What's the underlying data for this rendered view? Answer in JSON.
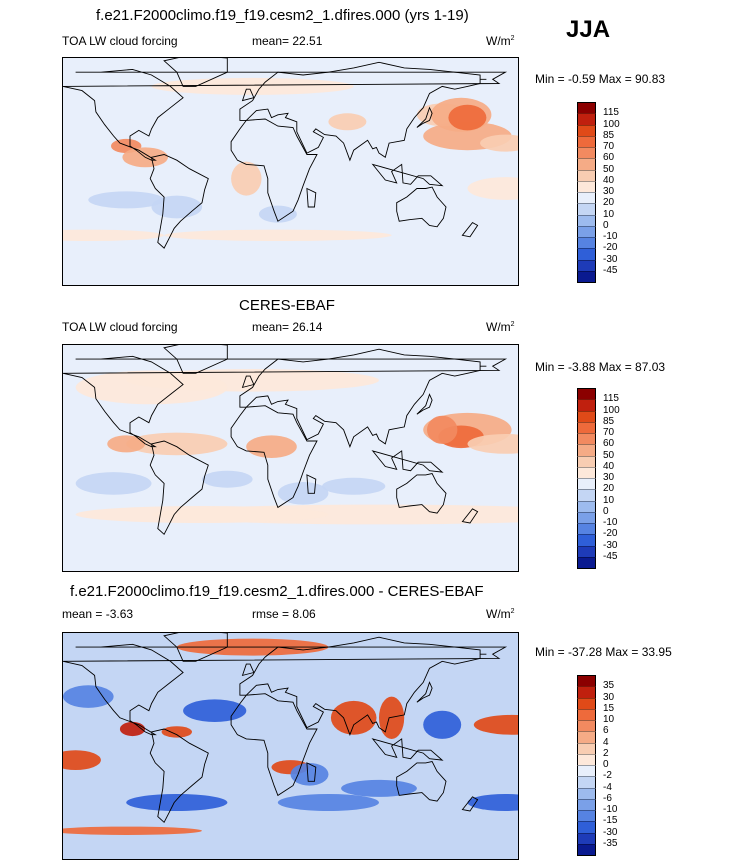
{
  "season": "JJA",
  "chart_data": [
    {
      "type": "heatmap",
      "title": "f.e21.F2000climo.f19_f19.cesm2_1.dfires.000 (yrs 1-19)",
      "left_label": "TOA LW cloud forcing",
      "center_label": "mean=  22.51",
      "right_label": "W/m",
      "unit_sup": "2",
      "minmax_label": "Min =  -0.59 Max =  90.83",
      "mean": 22.51,
      "min": -0.59,
      "max": 90.83,
      "colorbar_labels": [
        "115",
        "100",
        "85",
        "70",
        "60",
        "50",
        "40",
        "30",
        "20",
        "10",
        "0",
        "-10",
        "-20",
        "-30",
        "-45"
      ],
      "colorbar_colors": [
        "#8b0000",
        "#c0200e",
        "#e04a18",
        "#ee6a3b",
        "#f28a60",
        "#f5ab86",
        "#f8cdb2",
        "#fde8da",
        "#e8effb",
        "#c4d6f4",
        "#9dbbee",
        "#7aa0e8",
        "#5683e2",
        "#2f5fd8",
        "#1e3bb8",
        "#0a1a90"
      ],
      "blobs": [
        {
          "x": 170,
          "y": 25,
          "value": 55,
          "rx": 35,
          "ry": 10
        },
        {
          "x": 150,
          "y": 40,
          "value": 40,
          "rx": 20,
          "ry": 8
        },
        {
          "x": 165,
          "y": 40,
          "value": 55,
          "rx": 24,
          "ry": 12
        },
        {
          "x": 170,
          "y": 38,
          "value": 75,
          "rx": 15,
          "ry": 9
        },
        {
          "x": 75,
          "y": 35,
          "value": 45,
          "rx": 15,
          "ry": 6
        },
        {
          "x": -5,
          "y": -5,
          "value": 40,
          "rx": 12,
          "ry": 12
        },
        {
          "x": -160,
          "y": 20,
          "value": 40,
          "rx": 20,
          "ry": 6
        },
        {
          "x": -100,
          "y": 18,
          "value": 65,
          "rx": 12,
          "ry": 5
        },
        {
          "x": -85,
          "y": 10,
          "value": 50,
          "rx": 18,
          "ry": 7
        },
        {
          "x": -160,
          "y": -12,
          "value": 35,
          "rx": 30,
          "ry": 8
        },
        {
          "x": 20,
          "y": -45,
          "value": 35,
          "rx": 90,
          "ry": 4
        },
        {
          "x": -130,
          "y": -45,
          "value": 35,
          "rx": 60,
          "ry": 4
        },
        {
          "x": 0,
          "y": 60,
          "value": 35,
          "rx": 80,
          "ry": 6
        },
        {
          "x": -60,
          "y": -25,
          "value": 10,
          "rx": 20,
          "ry": 8
        },
        {
          "x": 20,
          "y": -30,
          "value": 10,
          "rx": 15,
          "ry": 6
        },
        {
          "x": -100,
          "y": -20,
          "value": 10,
          "rx": 30,
          "ry": 6
        }
      ]
    },
    {
      "type": "heatmap",
      "title": "CERES-EBAF",
      "left_label": "TOA LW cloud forcing",
      "center_label": "mean=  26.14",
      "right_label": "W/m",
      "unit_sup": "2",
      "minmax_label": "Min =  -3.88 Max =  87.03",
      "mean": 26.14,
      "min": -3.88,
      "max": 87.03,
      "colorbar_labels": [
        "115",
        "100",
        "85",
        "70",
        "60",
        "50",
        "40",
        "30",
        "20",
        "10",
        "0",
        "-10",
        "-20",
        "-30",
        "-45"
      ],
      "colorbar_colors": [
        "#8b0000",
        "#c0200e",
        "#e04a18",
        "#ee6a3b",
        "#f28a60",
        "#f5ab86",
        "#f8cdb2",
        "#fde8da",
        "#e8effb",
        "#c4d6f4",
        "#9dbbee",
        "#7aa0e8",
        "#5683e2",
        "#2f5fd8",
        "#1e3bb8",
        "#0a1a90"
      ],
      "blobs": [
        {
          "x": 170,
          "y": 20,
          "value": 55,
          "rx": 35,
          "ry": 12
        },
        {
          "x": 165,
          "y": 15,
          "value": 70,
          "rx": 18,
          "ry": 8
        },
        {
          "x": 150,
          "y": 20,
          "value": 60,
          "rx": 12,
          "ry": 10
        },
        {
          "x": 15,
          "y": 8,
          "value": 55,
          "rx": 20,
          "ry": 8
        },
        {
          "x": -60,
          "y": 10,
          "value": 45,
          "rx": 40,
          "ry": 8
        },
        {
          "x": -100,
          "y": 10,
          "value": 55,
          "rx": 15,
          "ry": 6
        },
        {
          "x": -160,
          "y": 10,
          "value": 45,
          "rx": 30,
          "ry": 7
        },
        {
          "x": 100,
          "y": -40,
          "value": 35,
          "rx": 180,
          "ry": 7
        },
        {
          "x": -40,
          "y": -40,
          "value": 35,
          "rx": 100,
          "ry": 6
        },
        {
          "x": 0,
          "y": 55,
          "value": 35,
          "rx": 100,
          "ry": 8
        },
        {
          "x": -80,
          "y": 50,
          "value": 35,
          "rx": 60,
          "ry": 12
        },
        {
          "x": -110,
          "y": -18,
          "value": 10,
          "rx": 30,
          "ry": 8
        },
        {
          "x": -20,
          "y": -15,
          "value": 10,
          "rx": 20,
          "ry": 6
        },
        {
          "x": 80,
          "y": -20,
          "value": 10,
          "rx": 25,
          "ry": 6
        },
        {
          "x": 40,
          "y": -25,
          "value": 10,
          "rx": 20,
          "ry": 8
        }
      ]
    },
    {
      "type": "heatmap",
      "title": "f.e21.F2000climo.f19_f19.cesm2_1.dfires.000 - CERES-EBAF",
      "left_label": "mean =  -3.63",
      "center_label": "rmse =   8.06",
      "right_label": "W/m",
      "unit_sup": "2",
      "minmax_label": "Min = -37.28 Max =  33.95",
      "mean": -3.63,
      "rmse": 8.06,
      "min": -37.28,
      "max": 33.95,
      "colorbar_labels": [
        "35",
        "30",
        "15",
        "10",
        "6",
        "4",
        "2",
        "0",
        "-2",
        "-4",
        "-6",
        "-10",
        "-15",
        "-30",
        "-35"
      ],
      "colorbar_colors": [
        "#8b0000",
        "#c0200e",
        "#e04a18",
        "#ee6a3b",
        "#f28a60",
        "#f5ab86",
        "#f8cdb2",
        "#fde8da",
        "#e8effb",
        "#c4d6f4",
        "#9dbbee",
        "#7aa0e8",
        "#5683e2",
        "#2f5fd8",
        "#1e3bb8",
        "#0a1a90"
      ],
      "blobs": [
        {
          "x": 80,
          "y": 20,
          "value": 25,
          "rx": 18,
          "ry": 12
        },
        {
          "x": 110,
          "y": 20,
          "value": 20,
          "rx": 10,
          "ry": 15
        },
        {
          "x": 150,
          "y": 15,
          "value": -20,
          "rx": 15,
          "ry": 10
        },
        {
          "x": -155,
          "y": 15,
          "value": 25,
          "rx": 30,
          "ry": 7
        },
        {
          "x": -140,
          "y": -10,
          "value": 20,
          "rx": 20,
          "ry": 7
        },
        {
          "x": -95,
          "y": 12,
          "value": 30,
          "rx": 10,
          "ry": 5
        },
        {
          "x": -60,
          "y": 10,
          "value": 20,
          "rx": 12,
          "ry": 4
        },
        {
          "x": 30,
          "y": -15,
          "value": 15,
          "rx": 15,
          "ry": 5
        },
        {
          "x": -160,
          "y": -40,
          "value": -20,
          "rx": 30,
          "ry": 6
        },
        {
          "x": -60,
          "y": -40,
          "value": -20,
          "rx": 40,
          "ry": 6
        },
        {
          "x": 60,
          "y": -40,
          "value": -15,
          "rx": 40,
          "ry": 6
        },
        {
          "x": 0,
          "y": 70,
          "value": 10,
          "rx": 60,
          "ry": 6
        },
        {
          "x": -100,
          "y": -60,
          "value": 10,
          "rx": 60,
          "ry": 3
        },
        {
          "x": -30,
          "y": 25,
          "value": -20,
          "rx": 25,
          "ry": 8
        },
        {
          "x": -130,
          "y": 35,
          "value": -15,
          "rx": 20,
          "ry": 8
        },
        {
          "x": 100,
          "y": -30,
          "value": -15,
          "rx": 30,
          "ry": 6
        },
        {
          "x": 45,
          "y": -20,
          "value": -15,
          "rx": 15,
          "ry": 8
        }
      ]
    }
  ]
}
